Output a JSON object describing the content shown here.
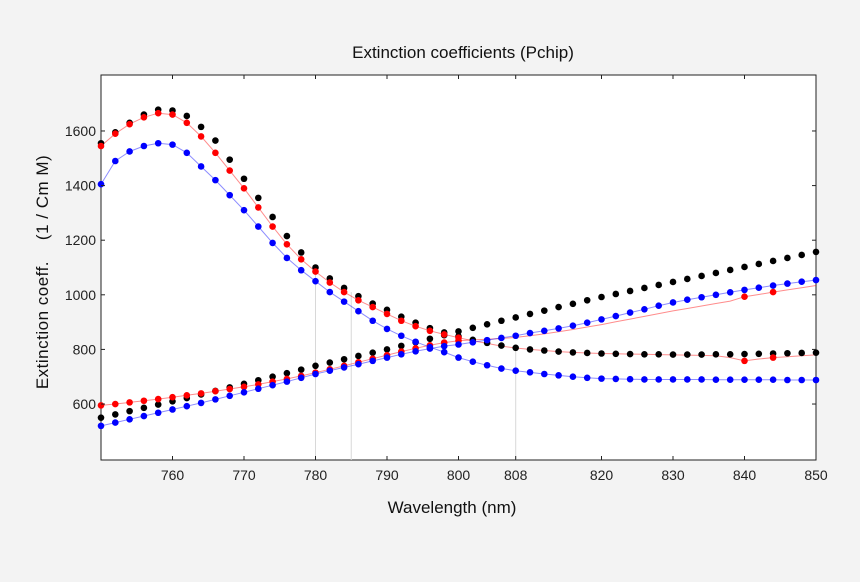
{
  "chart_data": {
    "type": "scatter",
    "title": "Extinction coefficients (Pchip)",
    "xlabel": "Wavelength (nm)",
    "ylabel": "Extinction coeff.    (1 / Cm M)",
    "xlim": [
      750,
      850
    ],
    "ylim": [
      395,
      1805
    ],
    "xticks": [
      760,
      770,
      780,
      790,
      800,
      808,
      820,
      830,
      840,
      850
    ],
    "yticks": [
      600,
      800,
      1000,
      1200,
      1400,
      1600
    ],
    "grid": false,
    "vertical_reference_lines": [
      780,
      785,
      808
    ],
    "x": [
      750,
      752,
      754,
      756,
      758,
      760,
      762,
      764,
      766,
      768,
      770,
      772,
      774,
      776,
      778,
      780,
      782,
      784,
      786,
      788,
      790,
      792,
      794,
      796,
      798,
      800,
      802,
      804,
      806,
      808,
      810,
      812,
      814,
      816,
      818,
      820,
      822,
      824,
      826,
      828,
      830,
      832,
      834,
      836,
      838,
      840,
      842,
      844,
      846,
      848,
      850
    ],
    "series": [
      {
        "color": "#000000",
        "line": false,
        "markers_at": "all",
        "values": [
          1555,
          1595,
          1630,
          1660,
          1678,
          1675,
          1655,
          1615,
          1565,
          1495,
          1425,
          1355,
          1285,
          1215,
          1155,
          1100,
          1060,
          1025,
          995,
          968,
          945,
          920,
          898,
          878,
          862,
          848,
          835,
          824,
          814,
          806,
          800,
          796,
          792,
          789,
          787,
          785,
          784,
          783,
          782,
          782,
          781,
          781,
          781,
          782,
          782,
          783,
          784,
          785,
          786,
          787,
          788
        ]
      },
      {
        "color": "#000000",
        "line": false,
        "markers_at": "all",
        "values": [
          550,
          562,
          574,
          586,
          598,
          610,
          622,
          635,
          648,
          661,
          674,
          687,
          700,
          713,
          726,
          740,
          752,
          764,
          776,
          788,
          800,
          813,
          826,
          839,
          852,
          866,
          879,
          892,
          905,
          917,
          930,
          942,
          955,
          967,
          980,
          992,
          1003,
          1014,
          1025,
          1036,
          1047,
          1058,
          1069,
          1080,
          1091,
          1102,
          1113,
          1124,
          1135,
          1146,
          1157
        ]
      },
      {
        "color": "#ff0000",
        "line": true,
        "markers_at": [
          750,
          752,
          754,
          756,
          758,
          760,
          762,
          764,
          766,
          768,
          770,
          772,
          774,
          776,
          778,
          780,
          782,
          784,
          786,
          788,
          790,
          792,
          794,
          796,
          798,
          800,
          840,
          844
        ],
        "values": [
          1545,
          1590,
          1625,
          1650,
          1665,
          1660,
          1630,
          1580,
          1520,
          1455,
          1390,
          1320,
          1250,
          1185,
          1130,
          1085,
          1045,
          1010,
          980,
          955,
          930,
          905,
          885,
          868,
          855,
          843,
          832,
          822,
          812,
          805,
          800,
          796,
          792,
          789,
          787,
          785,
          784,
          783,
          782,
          781,
          780,
          779,
          778,
          777,
          770,
          758,
          765,
          770,
          773,
          777,
          780
        ]
      },
      {
        "color": "#ff0000",
        "line": true,
        "markers_at": [
          750,
          752,
          754,
          756,
          758,
          760,
          762,
          764,
          766,
          768,
          770,
          772,
          774,
          776,
          778,
          780,
          782,
          784,
          786,
          788,
          790,
          792,
          794,
          796,
          798,
          800,
          840,
          844
        ],
        "values": [
          595,
          600,
          606,
          612,
          618,
          625,
          632,
          639,
          647,
          655,
          663,
          672,
          682,
          692,
          703,
          715,
          727,
          740,
          753,
          766,
          779,
          792,
          804,
          815,
          825,
          832,
          835,
          837,
          840,
          844,
          850,
          857,
          865,
          873,
          882,
          891,
          901,
          911,
          921,
          931,
          941,
          950,
          959,
          968,
          977,
          993,
          1001,
          1010,
          1018,
          1026,
          1034
        ]
      },
      {
        "color": "#0000ff",
        "line": true,
        "markers_at": "all",
        "values": [
          1405,
          1490,
          1525,
          1545,
          1555,
          1550,
          1520,
          1470,
          1420,
          1365,
          1310,
          1250,
          1190,
          1135,
          1090,
          1050,
          1010,
          975,
          940,
          905,
          875,
          850,
          828,
          808,
          790,
          770,
          755,
          742,
          730,
          722,
          716,
          710,
          705,
          700,
          696,
          693,
          692,
          691,
          690,
          690,
          690,
          690,
          690,
          689,
          689,
          689,
          689,
          689,
          688,
          688,
          688
        ]
      },
      {
        "color": "#0000ff",
        "line": true,
        "markers_at": "all",
        "values": [
          520,
          532,
          544,
          556,
          568,
          580,
          592,
          604,
          617,
          630,
          643,
          656,
          669,
          682,
          696,
          710,
          722,
          734,
          746,
          758,
          770,
          782,
          793,
          803,
          812,
          818,
          826,
          834,
          842,
          850,
          860,
          868,
          877,
          887,
          898,
          910,
          922,
          935,
          947,
          960,
          972,
          982,
          991,
          1000,
          1009,
          1018,
          1026,
          1034,
          1041,
          1048,
          1054
        ]
      }
    ]
  }
}
